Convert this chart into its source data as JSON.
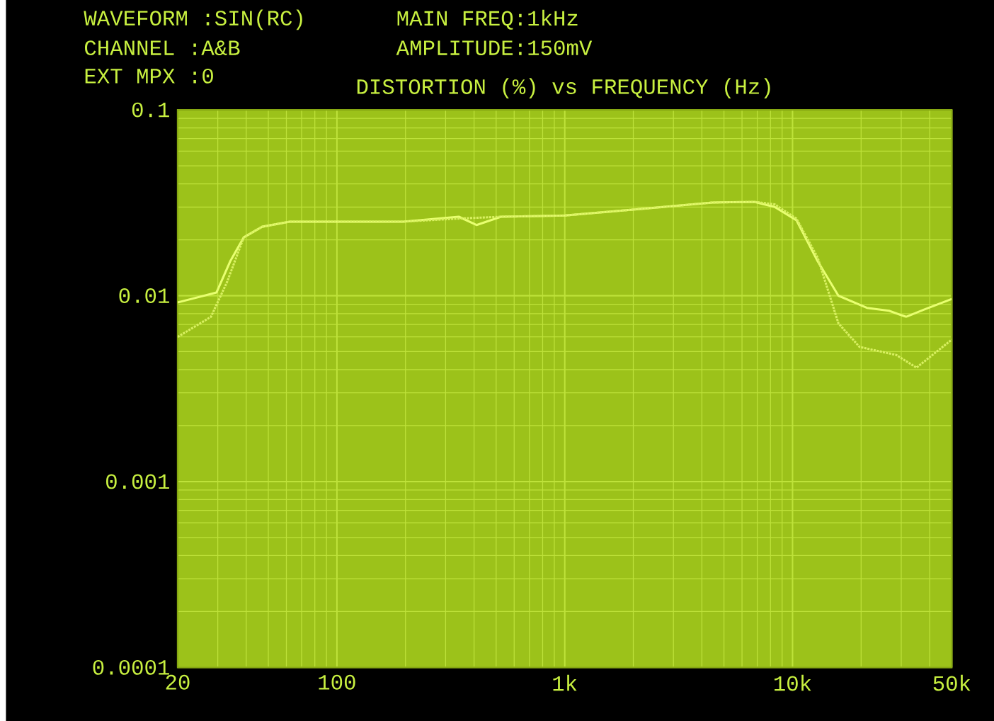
{
  "chart_data": {
    "type": "line",
    "title": "DISTORTION (%) vs FREQUENCY (Hz)",
    "annotations": [
      "WAVEFORM :SIN(RC)",
      "CHANNEL  :A&B",
      "EXT MPX  :0",
      "MAIN FREQ:1kHz",
      "AMPLITUDE:150mV"
    ],
    "log": "xy",
    "grid": true,
    "marker": "none",
    "xlim": [
      20,
      50000
    ],
    "ylim": [
      0.0001,
      0.1
    ],
    "xticks": [
      20,
      100,
      {
        "value": 1000,
        "label": "1k"
      },
      {
        "value": 10000,
        "label": "10k"
      },
      {
        "value": 50000,
        "label": "50k"
      }
    ],
    "yticks": [
      0.1,
      0.01,
      0.001,
      0.0001
    ],
    "series": [
      {
        "color": "#e8ff70",
        "line_style": "solid",
        "x": [
          20,
          29.6,
          34,
          39,
          47,
          62,
          100,
          195,
          343,
          410,
          525,
          1000,
          2300,
          4440,
          6800,
          8350,
          10400,
          12900,
          15900,
          21200,
          26500,
          31500,
          37600,
          50000
        ],
        "values": [
          0.0092,
          0.0104,
          0.0153,
          0.0206,
          0.0235,
          0.025,
          0.025,
          0.025,
          0.0266,
          0.024,
          0.0266,
          0.027,
          0.0295,
          0.0317,
          0.032,
          0.03,
          0.0255,
          0.0153,
          0.01,
          0.0086,
          0.0083,
          0.0077,
          0.0084,
          0.0096
        ]
      },
      {
        "color": "#d8f060",
        "line_style": "dotted",
        "x": [
          20,
          28,
          33,
          39,
          47,
          62,
          100,
          195,
          343,
          525,
          1000,
          2300,
          4440,
          6800,
          8350,
          10400,
          12900,
          15900,
          19700,
          28500,
          35000,
          50000
        ],
        "values": [
          0.006,
          0.0077,
          0.0119,
          0.0206,
          0.0235,
          0.025,
          0.025,
          0.025,
          0.026,
          0.0266,
          0.027,
          0.0295,
          0.0317,
          0.032,
          0.031,
          0.026,
          0.016,
          0.0071,
          0.0053,
          0.0048,
          0.0041,
          0.0058
        ]
      }
    ]
  }
}
